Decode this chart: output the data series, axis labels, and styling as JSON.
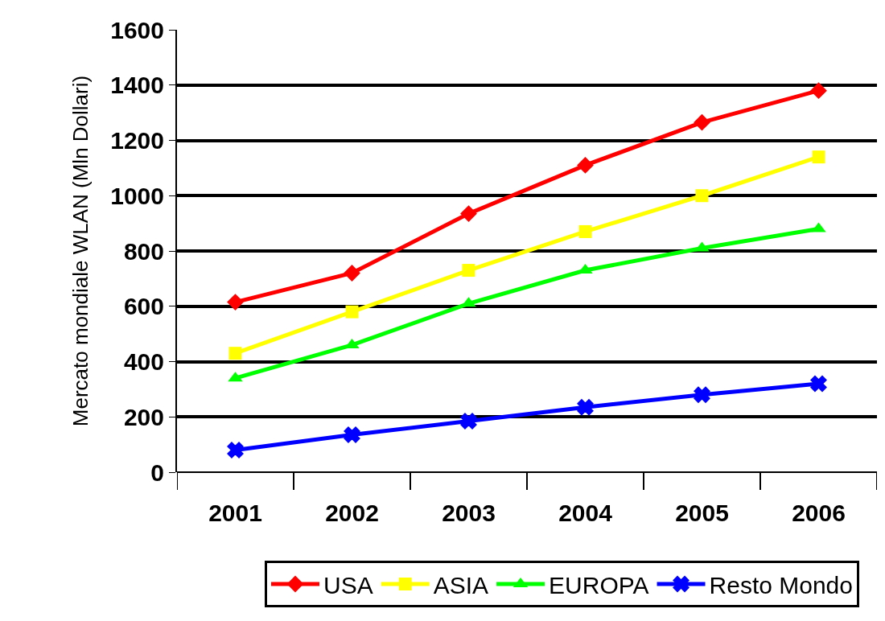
{
  "chart_data": {
    "type": "line",
    "ylabel": "Mercato mondiale WLAN (Mln Dollari)",
    "categories": [
      "2001",
      "2002",
      "2003",
      "2004",
      "2005",
      "2006"
    ],
    "series": [
      {
        "name": "USA",
        "color": "#ff0000",
        "marker": "diamond",
        "values": [
          615,
          720,
          935,
          1110,
          1265,
          1380
        ]
      },
      {
        "name": "ASIA",
        "color": "#ffff00",
        "marker": "square",
        "values": [
          430,
          580,
          730,
          870,
          1000,
          1140
        ]
      },
      {
        "name": "EUROPA",
        "color": "#00ff00",
        "marker": "triangle",
        "values": [
          340,
          460,
          610,
          730,
          810,
          880
        ]
      },
      {
        "name": "Resto Mondo",
        "color": "#0000ff",
        "marker": "cross",
        "values": [
          80,
          135,
          185,
          235,
          280,
          320
        ]
      }
    ],
    "ylim": [
      0,
      1600
    ],
    "yticks": [
      0,
      200,
      400,
      600,
      800,
      1000,
      1200,
      1400,
      1600
    ],
    "grid": "y",
    "legend": "bottom"
  }
}
